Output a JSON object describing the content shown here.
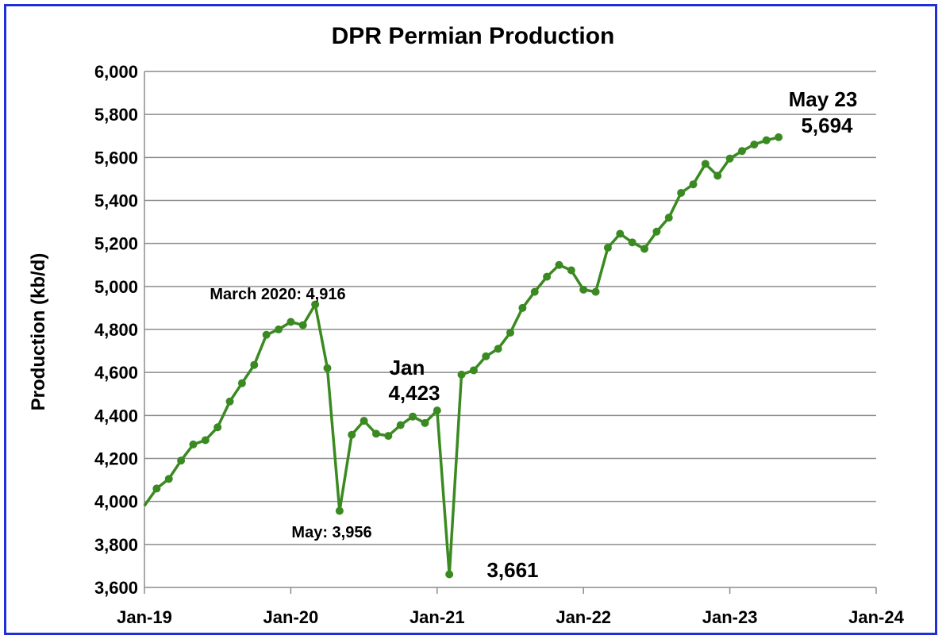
{
  "chart_data": {
    "type": "line",
    "title": "DPR Permian Production",
    "xlabel": "",
    "ylabel": "Production (kb/d)",
    "ylim": [
      3600,
      6000
    ],
    "y_ticks": [
      "3,600",
      "3,800",
      "4,000",
      "4,200",
      "4,400",
      "4,600",
      "4,800",
      "5,000",
      "5,200",
      "5,400",
      "5,600",
      "5,800",
      "6,000"
    ],
    "x_ticks": [
      "Jan-19",
      "Jan-20",
      "Jan-21",
      "Jan-22",
      "Jan-23",
      "Jan-24"
    ],
    "grid": true,
    "color": "#3a8a21",
    "series": [
      {
        "x": [
          "2019-01",
          "2019-02",
          "2019-03",
          "2019-04",
          "2019-05",
          "2019-06",
          "2019-07",
          "2019-08",
          "2019-09",
          "2019-10",
          "2019-11",
          "2019-12",
          "2020-01",
          "2020-02",
          "2020-03",
          "2020-04",
          "2020-05",
          "2020-06",
          "2020-07",
          "2020-08",
          "2020-09",
          "2020-10",
          "2020-11",
          "2020-12",
          "2021-01",
          "2021-02",
          "2021-03",
          "2021-04",
          "2021-05",
          "2021-06",
          "2021-07",
          "2021-08",
          "2021-09",
          "2021-10",
          "2021-11",
          "2021-12",
          "2022-01",
          "2022-02",
          "2022-03",
          "2022-04",
          "2022-05",
          "2022-06",
          "2022-07",
          "2022-08",
          "2022-09",
          "2022-10",
          "2022-11",
          "2022-12",
          "2023-01",
          "2023-02",
          "2023-03",
          "2023-04",
          "2023-05"
        ],
        "values": [
          3980,
          4060,
          4105,
          4190,
          4265,
          4285,
          4345,
          4465,
          4550,
          4635,
          4775,
          4800,
          4835,
          4820,
          4916,
          4620,
          3956,
          4310,
          4375,
          4315,
          4305,
          4355,
          4395,
          4365,
          4423,
          3661,
          4590,
          4610,
          4675,
          4710,
          4785,
          4900,
          4975,
          5045,
          5100,
          5075,
          4985,
          4975,
          5180,
          5245,
          5205,
          5175,
          5255,
          5320,
          5435,
          5475,
          5570,
          5515,
          5595,
          5630,
          5660,
          5680,
          5694
        ]
      }
    ],
    "annotations": {
      "march_2020": "March 2020: 4,916",
      "may_2020": "May: 3,956",
      "jan_2021_label": "Jan",
      "jan_2021_value": "4,423",
      "feb_2021_value": "3,661",
      "may_2023_label": "May 23",
      "may_2023_value": "5,694"
    }
  }
}
